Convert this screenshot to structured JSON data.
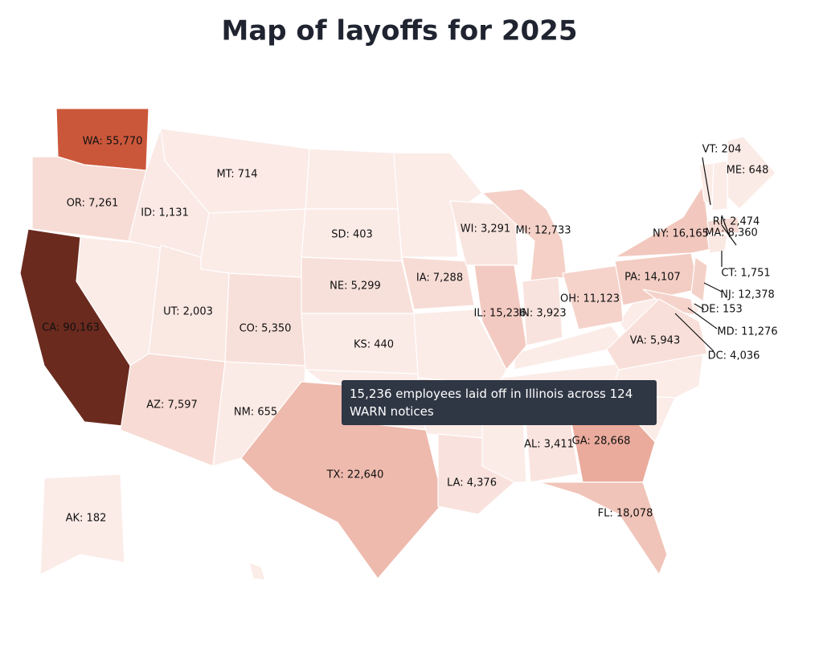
{
  "chart_data": {
    "type": "choropleth",
    "title": "Map of layoffs for 2025",
    "categories": [
      "WA",
      "OR",
      "CA",
      "ID",
      "MT",
      "UT",
      "AZ",
      "NM",
      "CO",
      "SD",
      "NE",
      "KS",
      "IA",
      "WI",
      "MI",
      "IL",
      "IN",
      "OH",
      "PA",
      "NY",
      "VT",
      "ME",
      "RI",
      "MA",
      "CT",
      "NJ",
      "DE",
      "MD",
      "DC",
      "VA",
      "AL",
      "GA",
      "FL",
      "TX",
      "LA",
      "AK"
    ],
    "values": [
      55770,
      7261,
      90163,
      1131,
      714,
      2003,
      7597,
      655,
      5350,
      403,
      5299,
      440,
      7288,
      3291,
      12733,
      15236,
      3923,
      11123,
      14107,
      16165,
      204,
      648,
      2474,
      8360,
      1751,
      12378,
      153,
      11276,
      4036,
      5943,
      3411,
      28668,
      18078,
      22640,
      4376,
      182
    ],
    "value_labels": [
      "WA: 55,770",
      "OR: 7,261",
      "CA: 90,163",
      "ID: 1,131",
      "MT: 714",
      "UT: 2,003",
      "AZ: 7,597",
      "NM: 655",
      "CO: 5,350",
      "SD: 403",
      "NE: 5,299",
      "KS: 440",
      "IA: 7,288",
      "WI: 3,291",
      "MI: 12,733",
      "IL: 15,236",
      "IN: 3,923",
      "OH: 11,123",
      "PA: 14,107",
      "NY: 16,165",
      "VT: 204",
      "ME: 648",
      "RI: 2,474",
      "MA: 8,360",
      "CT: 1,751",
      "NJ: 12,378",
      "DE: 153",
      "MD: 11,276",
      "DC: 4,036",
      "VA: 5,943",
      "AL: 3,411",
      "GA: 28,668",
      "FL: 18,078",
      "TX: 22,640",
      "LA: 4,376",
      "AK: 182"
    ],
    "tooltip": "15,236 employees laid off in Illinois across 124 WARN notices"
  }
}
